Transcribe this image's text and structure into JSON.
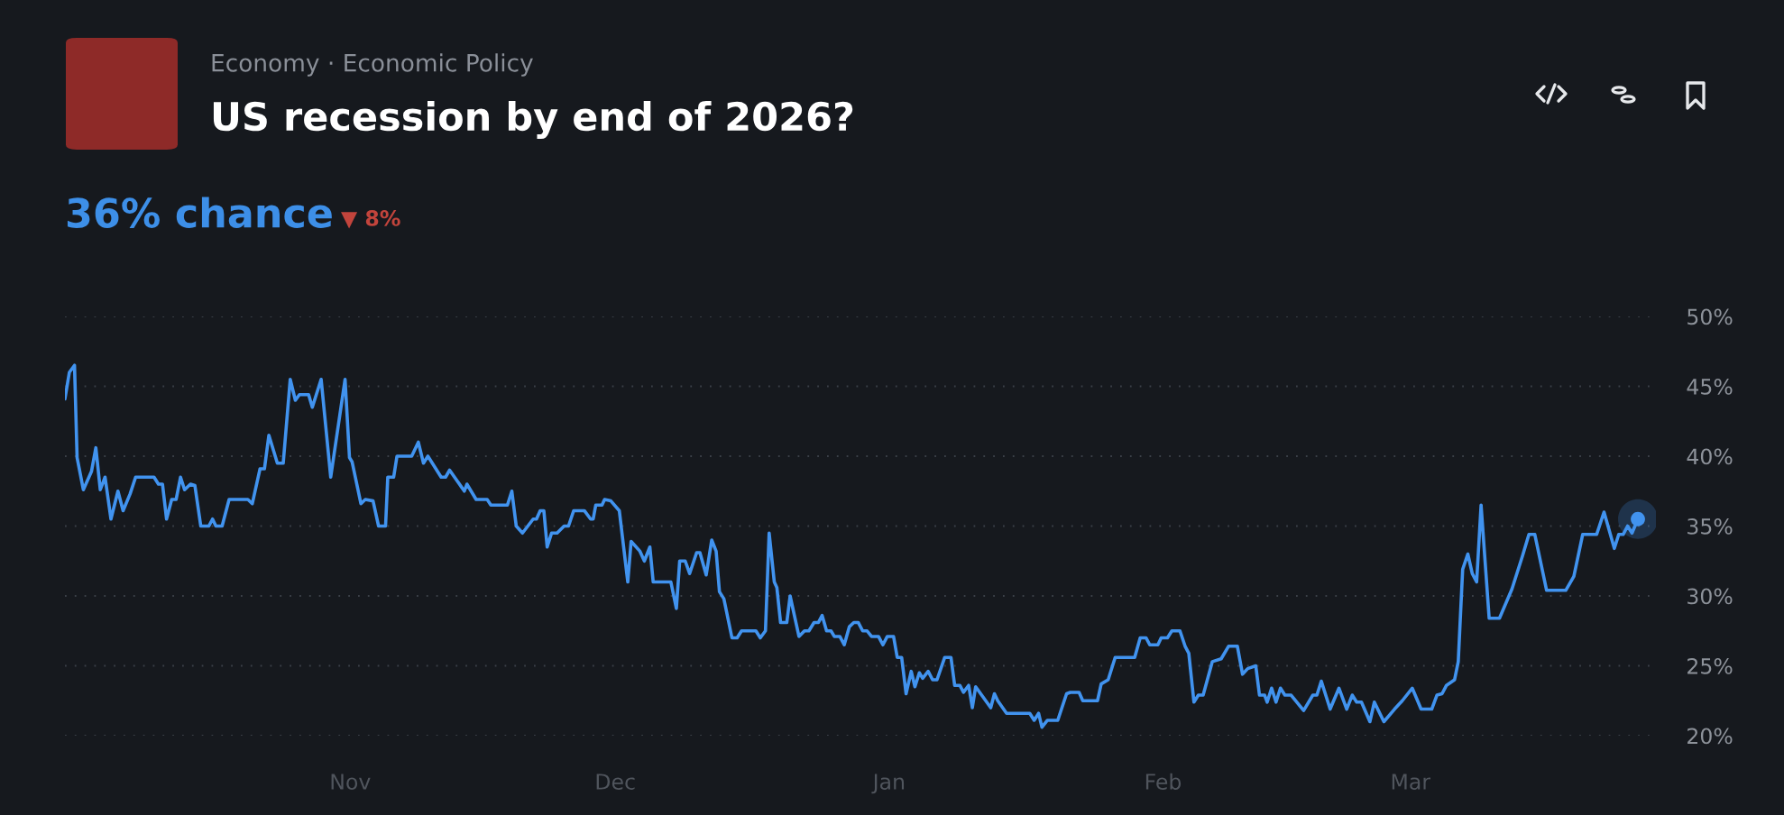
{
  "chart_data": {
    "type": "line",
    "title": "US recession by end of 2026?",
    "subtitle": "Economy · Economic Policy",
    "annotations": [
      "36% chance",
      "▼ 8%"
    ],
    "x": [
      "2025-09-29T17:00",
      "2025-09-30T05:00",
      "2025-09-30T19:00",
      "2025-10-01T02:00",
      "2025-10-01T19:00",
      "2025-10-02T17:00",
      "2025-10-03T05:00",
      "2025-10-03T17:00",
      "2025-10-04T06:00",
      "2025-10-04T22:00",
      "2025-10-05T17:00",
      "2025-10-06T07:00",
      "2025-10-07T02:00",
      "2025-10-07T17:00",
      "2025-10-09T19:00",
      "2025-10-10T07:00",
      "2025-10-10T18:00",
      "2025-10-11T05:00",
      "2025-10-11T19:00",
      "2025-10-12T07:00",
      "2025-10-12T19:00",
      "2025-10-13T06:00",
      "2025-10-13T22:00",
      "2025-10-14T10:00",
      "2025-10-15T02:00",
      "2025-10-16T00:00",
      "2025-10-16T10:00",
      "2025-10-16T19:00",
      "2025-10-17T12:00",
      "2025-10-18T07:00",
      "2025-10-20T10:00",
      "2025-10-20T22:00",
      "2025-10-21T19:00",
      "2025-10-22T07:00",
      "2025-10-22T19:00",
      "2025-10-23T18:00",
      "2025-10-24T10:00",
      "2025-10-25T05:00",
      "2025-10-25T19:00",
      "2025-10-26T06:00",
      "2025-10-27T07:00",
      "2025-10-27T17:00",
      "2025-10-28T17:00",
      "2025-10-29T19:00",
      "2025-10-31T10:00",
      "2025-10-31T22:00",
      "2025-11-01T05:00",
      "2025-11-02T05:00",
      "2025-11-02T17:00",
      "2025-11-03T14:00",
      "2025-11-04T05:00",
      "2025-11-05T00:00",
      "2025-11-05T06:00",
      "2025-11-05T22:00",
      "2025-11-06T07:00",
      "2025-11-07T23:00",
      "2025-11-08T17:00",
      "2025-11-09T07:00",
      "2025-11-09T19:00",
      "2025-11-11T07:00",
      "2025-11-11T19:00",
      "2025-11-12T06:00",
      "2025-11-13T22:00",
      "2025-11-14T05:00",
      "2025-11-15T06:00",
      "2025-11-16T12:00",
      "2025-11-16T22:00",
      "2025-11-18T19:00",
      "2025-11-19T07:00",
      "2025-11-19T19:00",
      "2025-11-20T12:00",
      "2025-11-21T17:00",
      "2025-11-22T02:00",
      "2025-11-22T12:00",
      "2025-11-22T22:00",
      "2025-11-23T07:00",
      "2025-11-23T19:00",
      "2025-11-24T10:00",
      "2025-11-25T05:00",
      "2025-11-25T17:00",
      "2025-11-26T07:00",
      "2025-11-27T12:00",
      "2025-11-28T05:00",
      "2025-11-28T12:00",
      "2025-11-28T19:00",
      "2025-11-29T12:00",
      "2025-11-29T19:00",
      "2025-11-30T12:00",
      "2025-12-01T11:00",
      "2025-12-02T10:00",
      "2025-12-02T19:00",
      "2025-12-03T19:00",
      "2025-12-04T07:00",
      "2025-12-04T22:00",
      "2025-12-05T07:00",
      "2025-12-07T07:00",
      "2025-12-07T22:00",
      "2025-12-08T07:00",
      "2025-12-08T22:00",
      "2025-12-09T10:00",
      "2025-12-10T05:00",
      "2025-12-10T14:00",
      "2025-12-11T07:00",
      "2025-12-11T22:00",
      "2025-12-12T10:00",
      "2025-12-12T19:00",
      "2025-12-13T07:00",
      "2025-12-14T05:00",
      "2025-12-14T19:00",
      "2025-12-15T07:00",
      "2025-12-16T22:00",
      "2025-12-17T10:00",
      "2025-12-18T00:00",
      "2025-12-18T10:00",
      "2025-12-19T00:00",
      "2025-12-19T07:00",
      "2025-12-19T17:00",
      "2025-12-20T10:00",
      "2025-12-20T19:00",
      "2025-12-21T19:00",
      "2025-12-22T10:00",
      "2025-12-22T22:00",
      "2025-12-23T12:00",
      "2025-12-24T00:00",
      "2025-12-24T10:00",
      "2025-12-24T22:00",
      "2025-12-25T10:00",
      "2025-12-25T19:00",
      "2025-12-26T10:00",
      "2025-12-26T22:00",
      "2025-12-27T12:00",
      "2025-12-28T00:00",
      "2025-12-28T12:00",
      "2025-12-29T00:00",
      "2025-12-29T12:00",
      "2025-12-30T00:00",
      "2025-12-30T19:00",
      "2025-12-31T07:00",
      "2025-12-31T19:00",
      "2026-01-01T12:00",
      "2026-01-01T22:00",
      "2026-01-02T10:00",
      "2026-01-02T22:00",
      "2026-01-03T12:00",
      "2026-01-03T22:00",
      "2026-01-04T10:00",
      "2026-01-04T19:00",
      "2026-01-05T10:00",
      "2026-01-05T22:00",
      "2026-01-06T10:00",
      "2026-01-07T07:00",
      "2026-01-08T00:00",
      "2026-01-08T10:00",
      "2026-01-09T00:00",
      "2026-01-09T10:00",
      "2026-01-10T00:00",
      "2026-01-10T10:00",
      "2026-01-10T19:00",
      "2026-01-12T12:00",
      "2026-01-12T22:00",
      "2026-01-13T07:00",
      "2026-01-14T07:00",
      "2026-01-16T22:00",
      "2026-01-17T10:00",
      "2026-01-17T22:00",
      "2026-01-18T07:00",
      "2026-01-18T22:00",
      "2026-01-20T02:00",
      "2026-01-21T02:00",
      "2026-01-21T12:00",
      "2026-01-22T12:00",
      "2026-01-22T22:00",
      "2026-01-24T14:00",
      "2026-01-25T00:00",
      "2026-01-25T19:00",
      "2026-01-26T14:00",
      "2026-01-28T19:00",
      "2026-01-29T10:00",
      "2026-01-30T02:00",
      "2026-01-30T12:00",
      "2026-01-31T10:00",
      "2026-01-31T19:00",
      "2026-02-01T12:00",
      "2026-02-02T00:00",
      "2026-02-02T22:00",
      "2026-02-03T12:00",
      "2026-02-03T22:00",
      "2026-02-04T12:00",
      "2026-02-05T00:00",
      "2026-02-05T13:00",
      "2026-02-06T14:00",
      "2026-02-07T14:00",
      "2026-02-08T10:00",
      "2026-02-09T10:00",
      "2026-02-10T00:00",
      "2026-02-10T14:00",
      "2026-02-11T12:00",
      "2026-02-11T22:00",
      "2026-02-12T12:00",
      "2026-02-12T19:00",
      "2026-02-13T07:00",
      "2026-02-13T19:00",
      "2026-02-14T07:00",
      "2026-02-14T19:00",
      "2026-02-15T12:00",
      "2026-02-16T22:00",
      "2026-02-17T23:00",
      "2026-02-18T10:00",
      "2026-02-18T22:00",
      "2026-02-19T22:00",
      "2026-02-20T22:00",
      "2026-02-21T19:00",
      "2026-02-22T10:00",
      "2026-02-22T22:00",
      "2026-02-23T11:00",
      "2026-02-24T10:00",
      "2026-02-24T22:00",
      "2026-02-26T00:00",
      "2026-02-27T05:00",
      "2026-02-28T02:00",
      "2026-03-01T05:00",
      "2026-03-02T05:00",
      "2026-03-03T10:00",
      "2026-03-04T00:00",
      "2026-03-04T14:00",
      "2026-03-05T02:00",
      "2026-03-06T00:00",
      "2026-03-06T10:00",
      "2026-03-06T22:00",
      "2026-03-07T12:00",
      "2026-03-08T00:00",
      "2026-03-08T12:00",
      "2026-03-09T00:00",
      "2026-03-09T22:00",
      "2026-03-11T02:00",
      "2026-03-12T12:00",
      "2026-03-13T17:00",
      "2026-03-14T10:00",
      "2026-03-15T02:00",
      "2026-03-16T10:00",
      "2026-03-18T14:00",
      "2026-03-19T12:00",
      "2026-03-20T12:00",
      "2026-03-22T02:00",
      "2026-03-22T22:00",
      "2026-03-24T02:00",
      "2026-03-24T14:00",
      "2026-03-25T02:00",
      "2026-03-25T14:00",
      "2026-03-26T02:00",
      "2026-03-26T18:00"
    ],
    "series": [
      {
        "color": "#4193ef",
        "values": [
          44.1,
          46.0,
          46.5,
          39.9,
          37.6,
          38.9,
          40.6,
          37.6,
          38.5,
          35.5,
          37.5,
          36.1,
          37.3,
          38.5,
          38.5,
          38.0,
          38.0,
          35.5,
          36.9,
          36.9,
          38.5,
          37.6,
          38.0,
          37.9,
          35.0,
          35.0,
          35.5,
          35.0,
          35.0,
          36.9,
          36.9,
          36.6,
          39.1,
          39.1,
          41.5,
          39.5,
          39.5,
          45.5,
          44.0,
          44.4,
          44.4,
          43.5,
          45.5,
          38.5,
          45.5,
          39.9,
          39.6,
          36.6,
          36.9,
          36.8,
          35.0,
          35.0,
          38.5,
          38.5,
          40.0,
          40.0,
          41.0,
          39.5,
          40.0,
          38.5,
          38.5,
          39.0,
          37.5,
          38.0,
          36.9,
          36.9,
          36.5,
          36.5,
          37.5,
          35.0,
          34.5,
          35.5,
          35.5,
          36.1,
          36.1,
          33.5,
          34.5,
          34.5,
          35.0,
          35.0,
          36.1,
          36.1,
          35.5,
          35.5,
          36.5,
          36.5,
          36.9,
          36.8,
          36.1,
          31.0,
          33.9,
          33.2,
          32.5,
          33.5,
          31.0,
          31.0,
          29.1,
          32.5,
          32.5,
          31.6,
          33.1,
          33.1,
          31.5,
          34.0,
          33.2,
          30.3,
          29.8,
          27.0,
          27.0,
          27.5,
          27.5,
          27.0,
          27.5,
          34.5,
          31.0,
          30.6,
          28.1,
          28.1,
          30.0,
          27.1,
          27.5,
          27.5,
          28.1,
          28.1,
          28.6,
          27.5,
          27.5,
          27.1,
          27.1,
          26.5,
          27.8,
          28.1,
          28.1,
          27.5,
          27.5,
          27.1,
          27.1,
          26.5,
          27.1,
          27.1,
          25.6,
          25.6,
          23.0,
          24.6,
          23.5,
          24.5,
          24.1,
          24.6,
          24.0,
          24.0,
          25.6,
          25.6,
          23.6,
          23.6,
          23.1,
          23.6,
          22.0,
          23.5,
          22.0,
          23.0,
          22.5,
          21.6,
          21.6,
          21.1,
          21.6,
          20.6,
          21.1,
          21.1,
          23.0,
          23.1,
          23.1,
          22.5,
          22.5,
          23.7,
          24.0,
          25.6,
          25.6,
          27.0,
          27.0,
          26.5,
          26.5,
          27.0,
          27.0,
          27.5,
          27.5,
          26.4,
          25.9,
          22.4,
          22.9,
          22.9,
          25.3,
          25.5,
          26.4,
          26.4,
          24.4,
          24.8,
          25.0,
          22.9,
          22.9,
          22.4,
          23.4,
          22.4,
          23.4,
          22.9,
          22.9,
          21.8,
          22.9,
          22.9,
          23.9,
          21.9,
          23.4,
          21.9,
          22.9,
          22.4,
          22.4,
          21.0,
          22.4,
          21.0,
          21.9,
          22.5,
          23.4,
          21.9,
          21.9,
          22.9,
          23.0,
          23.6,
          24.0,
          25.3,
          31.9,
          33.0,
          31.6,
          31.0,
          36.5,
          28.4,
          28.4,
          30.5,
          32.9,
          34.4,
          34.4,
          30.4,
          30.4,
          31.4,
          34.4,
          34.4,
          36.0,
          33.4,
          34.4,
          34.4,
          35.0,
          34.5,
          35.5
        ]
      }
    ],
    "xlim": [
      "2025-09-29T17:00",
      "2026-03-28T19:00"
    ],
    "xticks": [
      {
        "value": "2025-11-01",
        "label": "Nov"
      },
      {
        "value": "2025-12-01",
        "label": "Dec"
      },
      {
        "value": "2026-01-01",
        "label": "Jan"
      },
      {
        "value": "2026-02-01",
        "label": "Feb"
      },
      {
        "value": "2026-03-01",
        "label": "Mar"
      }
    ],
    "ylim": [
      20,
      50
    ],
    "yticks": [
      {
        "value": 20,
        "label": "20%"
      },
      {
        "value": 25,
        "label": "25%"
      },
      {
        "value": 30,
        "label": "30%"
      },
      {
        "value": 35,
        "label": "35%"
      },
      {
        "value": 40,
        "label": "40%"
      },
      {
        "value": 45,
        "label": "45%"
      },
      {
        "value": 50,
        "label": "50%"
      }
    ],
    "grid": "y",
    "legend": false,
    "marker": "none",
    "line_style": "solid"
  }
}
